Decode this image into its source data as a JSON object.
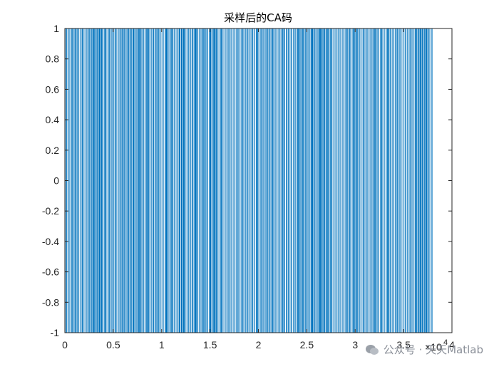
{
  "chart_data": {
    "type": "line",
    "title": "采样后的CA码",
    "xlabel": "",
    "ylabel": "",
    "xlim": [
      0,
      40000
    ],
    "ylim": [
      -1,
      1
    ],
    "x_tick_labels": [
      "0",
      "0.5",
      "1",
      "1.5",
      "2",
      "2.5",
      "3",
      "3.5",
      "4"
    ],
    "x_exponent_label": {
      "base": "×10",
      "exp": "4"
    },
    "y_tick_labels": [
      "1",
      "0.8",
      "0.6",
      "0.4",
      "0.2",
      "0",
      "-0.2",
      "-0.4",
      "-0.6",
      "-0.8",
      "-1"
    ],
    "grid": false,
    "series": [
      {
        "values_description": "binary sequence alternating between -1 and 1",
        "x_range": [
          0,
          38000
        ],
        "levels": [
          -1,
          1
        ],
        "color": "#0072BD"
      }
    ]
  },
  "watermark": {
    "text": "公众号 · 天天Matlab"
  }
}
